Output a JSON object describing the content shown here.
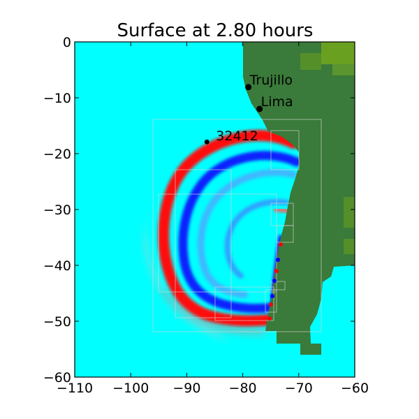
{
  "chart_data": {
    "type": "heatmap",
    "title": "Surface at 2.80 hours",
    "xlabel": "",
    "ylabel": "",
    "xlim": [
      -110,
      -60
    ],
    "ylim": [
      -60,
      0
    ],
    "x_ticks": [
      -110,
      -100,
      -90,
      -80,
      -70,
      -60
    ],
    "y_ticks": [
      0,
      -10,
      -20,
      -30,
      -40,
      -50,
      -60
    ],
    "x_tick_labels": [
      "−110",
      "−100",
      "−90",
      "−80",
      "−70",
      "−60"
    ],
    "y_tick_labels": [
      "0",
      "−10",
      "−20",
      "−30",
      "−40",
      "−50",
      "−60"
    ],
    "grid": false,
    "colors": {
      "ocean": "#00ffff",
      "land": "#3a7a3a",
      "highland": "#6aa020",
      "wave_positive": "#ff0000",
      "wave_negative": "#0000ff",
      "grid_patch": "#cccccc"
    },
    "locations": [
      {
        "name": "Trujillo",
        "lon": -79.0,
        "lat": -8.1
      },
      {
        "name": "Lima",
        "lon": -77.0,
        "lat": -12.0
      },
      {
        "name": "32412",
        "lon": -86.4,
        "lat": -17.9
      }
    ]
  }
}
